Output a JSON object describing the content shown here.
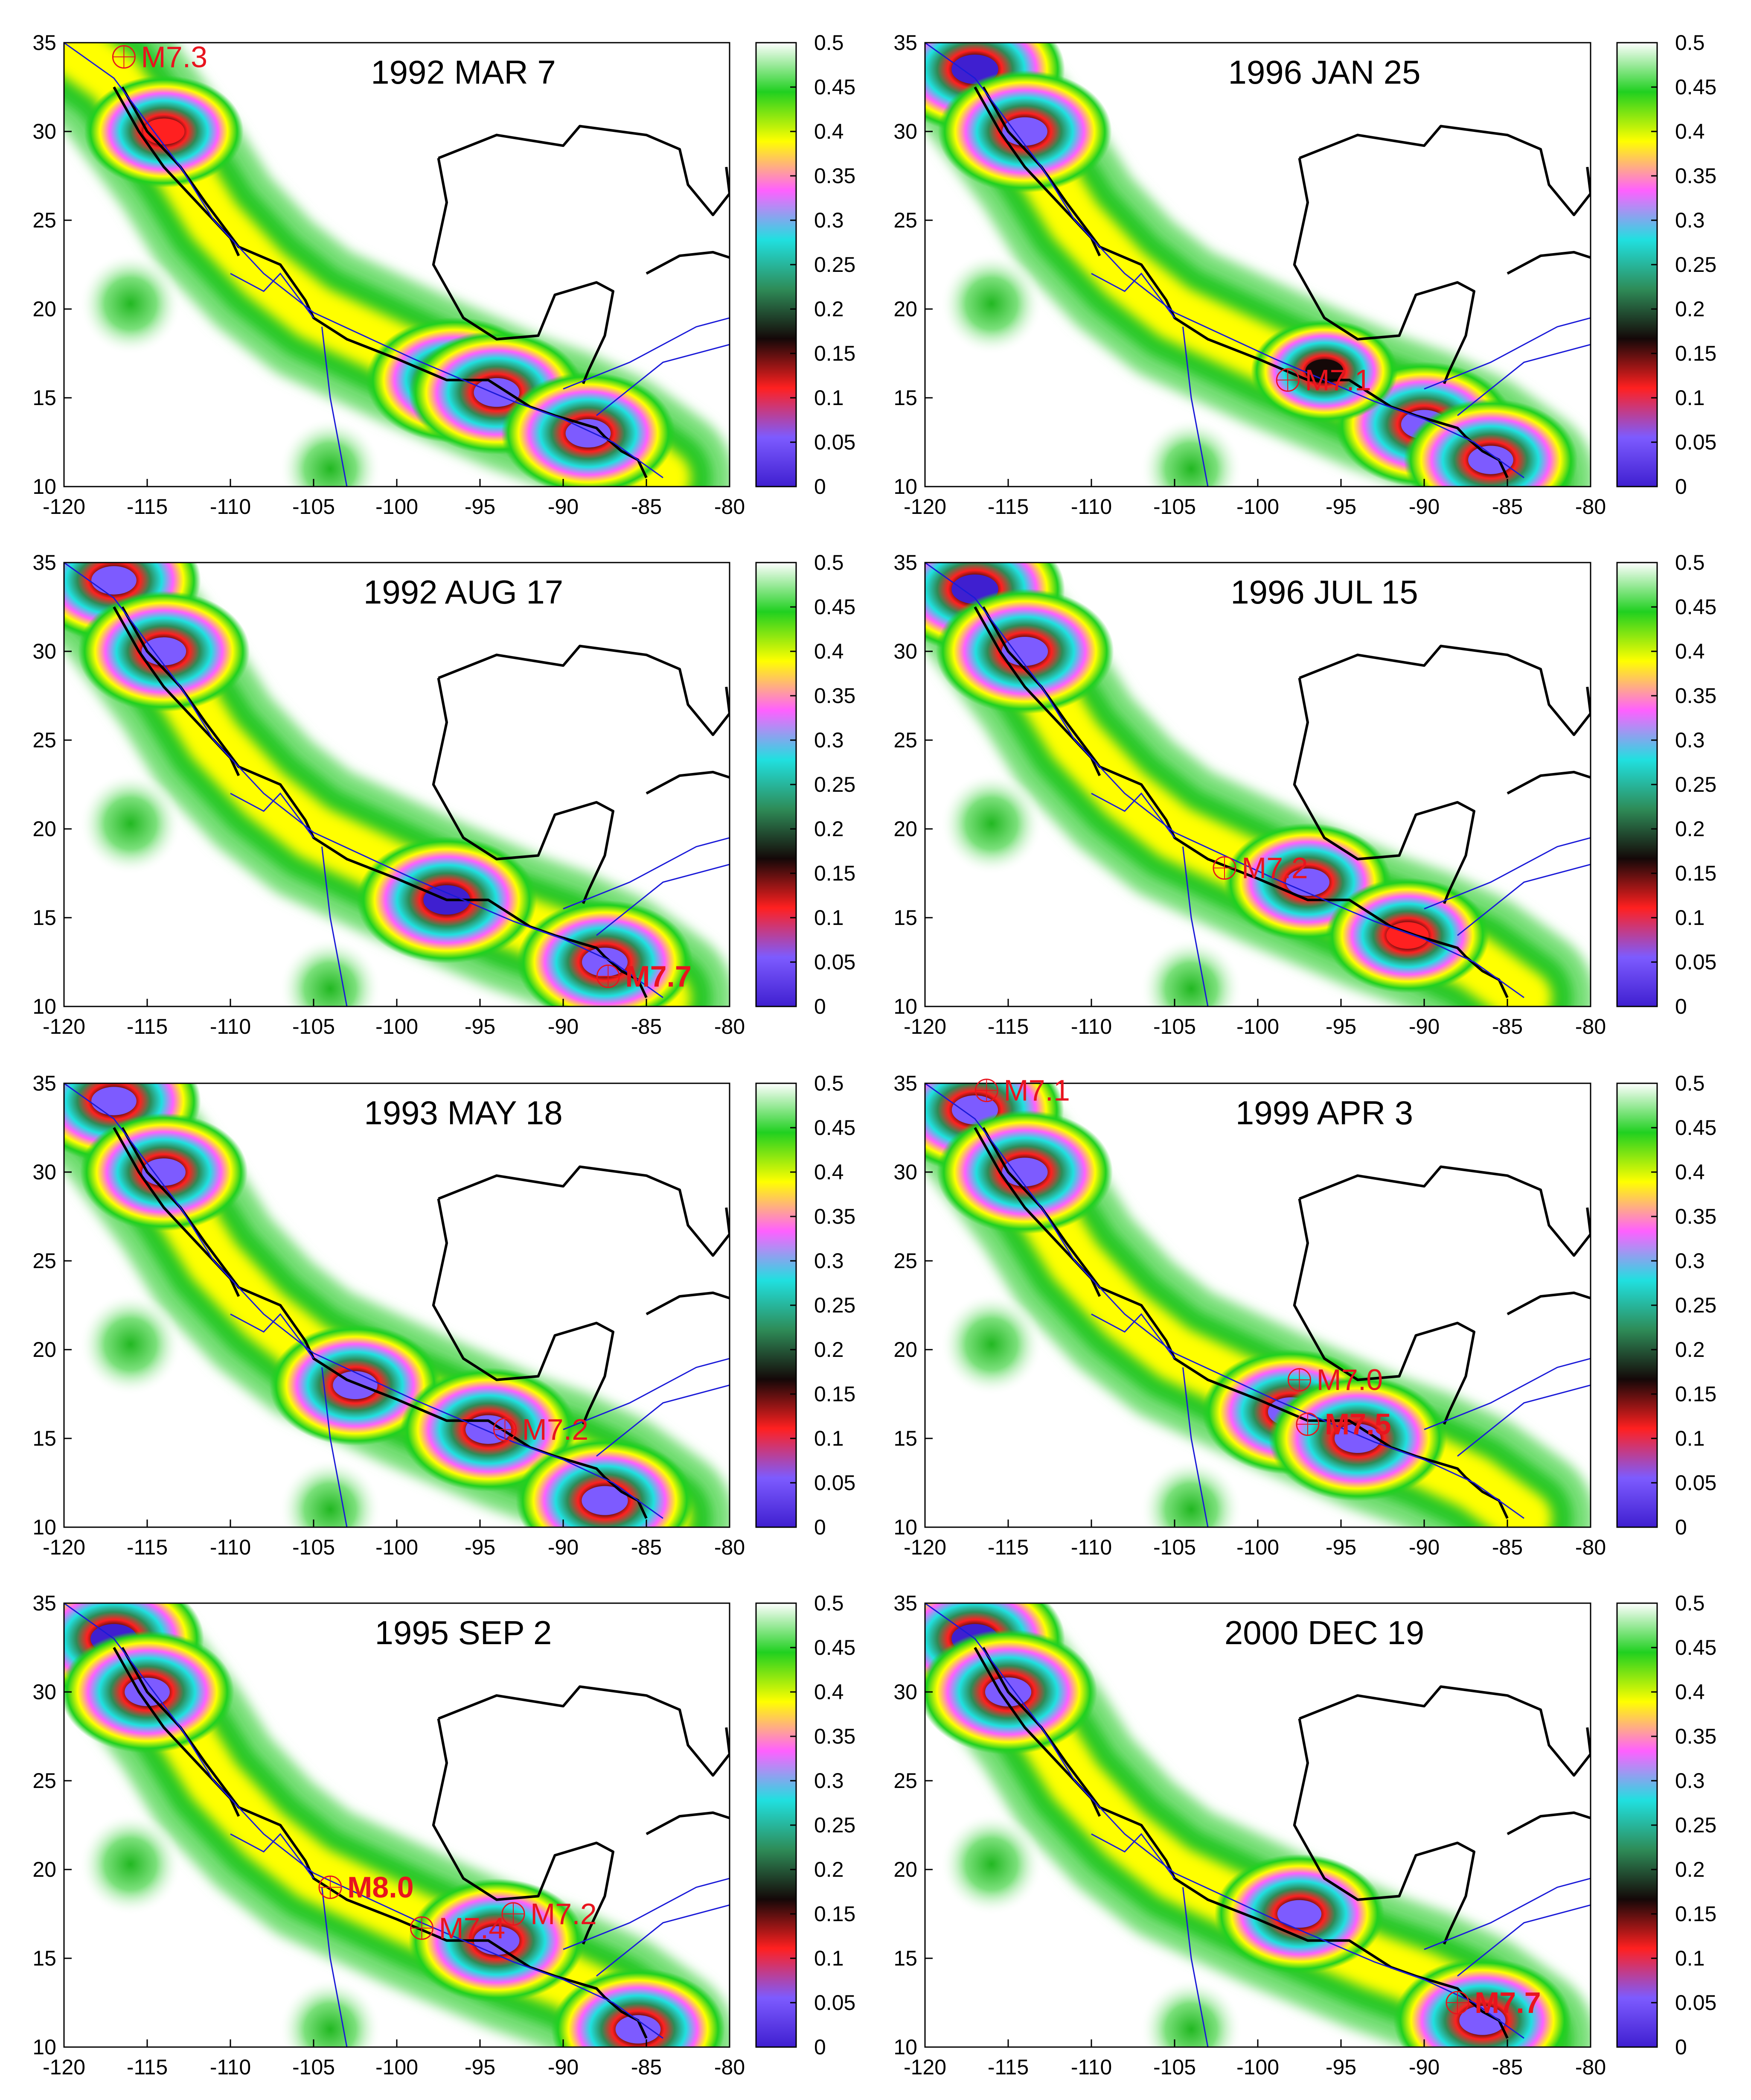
{
  "chart_data": [
    {
      "type": "heatmap",
      "title": "1992 MAR 7",
      "xlim": [
        -120,
        -80
      ],
      "ylim": [
        10,
        35
      ],
      "x_ticks": [
        "-120",
        "-115",
        "-110",
        "-105",
        "-100",
        "-95",
        "-90",
        "-85",
        "-80"
      ],
      "y_ticks": [
        "10",
        "15",
        "20",
        "25",
        "30",
        "35"
      ],
      "colorbar": {
        "range": [
          0,
          0.5
        ],
        "ticks": [
          "0",
          "0.05",
          "0.1",
          "0.15",
          "0.2",
          "0.25",
          "0.3",
          "0.35",
          "0.4",
          "0.45",
          "0.5"
        ]
      },
      "earthquakes": [
        {
          "label": "M7.3",
          "lon": -116.4,
          "lat": 34.2,
          "bold": false
        }
      ],
      "hotspots": [
        {
          "lon": -96.5,
          "lat": 16.0,
          "value": 0.03
        },
        {
          "lon": -94.0,
          "lat": 15.3,
          "value": 0.04
        },
        {
          "lon": -88.5,
          "lat": 13.0,
          "value": 0.05
        },
        {
          "lon": -114.0,
          "lat": 30.0,
          "value": 0.12
        }
      ]
    },
    {
      "type": "heatmap",
      "title": "1996 JAN 25",
      "xlim": [
        -120,
        -80
      ],
      "ylim": [
        10,
        35
      ],
      "x_ticks": [
        "-120",
        "-115",
        "-110",
        "-105",
        "-100",
        "-95",
        "-90",
        "-85",
        "-80"
      ],
      "y_ticks": [
        "10",
        "15",
        "20",
        "25",
        "30",
        "35"
      ],
      "colorbar": {
        "range": [
          0,
          0.5
        ],
        "ticks": [
          "0",
          "0.05",
          "0.1",
          "0.15",
          "0.2",
          "0.25",
          "0.3",
          "0.35",
          "0.4",
          "0.45",
          "0.5"
        ]
      },
      "earthquakes": [
        {
          "label": "M7.1",
          "lon": -98.2,
          "lat": 16.0,
          "bold": false
        }
      ],
      "hotspots": [
        {
          "lon": -117.0,
          "lat": 33.5,
          "value": 0.02
        },
        {
          "lon": -114.0,
          "lat": 30.0,
          "value": 0.05
        },
        {
          "lon": -90.0,
          "lat": 13.5,
          "value": 0.03
        },
        {
          "lon": -86.0,
          "lat": 11.5,
          "value": 0.05
        },
        {
          "lon": -96.0,
          "lat": 16.5,
          "value": 0.18
        }
      ]
    },
    {
      "type": "heatmap",
      "title": "1992 AUG 17",
      "xlim": [
        -120,
        -80
      ],
      "ylim": [
        10,
        35
      ],
      "x_ticks": [
        "-120",
        "-115",
        "-110",
        "-105",
        "-100",
        "-95",
        "-90",
        "-85",
        "-80"
      ],
      "y_ticks": [
        "10",
        "15",
        "20",
        "25",
        "30",
        "35"
      ],
      "colorbar": {
        "range": [
          0,
          0.5
        ],
        "ticks": [
          "0",
          "0.05",
          "0.1",
          "0.15",
          "0.2",
          "0.25",
          "0.3",
          "0.35",
          "0.4",
          "0.45",
          "0.5"
        ]
      },
      "earthquakes": [
        {
          "label": "M7.7",
          "lon": -87.3,
          "lat": 11.7,
          "bold": true
        }
      ],
      "hotspots": [
        {
          "lon": -117.0,
          "lat": 34.0,
          "value": 0.05
        },
        {
          "lon": -114.0,
          "lat": 30.0,
          "value": 0.06
        },
        {
          "lon": -97.0,
          "lat": 16.0,
          "value": 0.02
        },
        {
          "lon": -87.5,
          "lat": 12.5,
          "value": 0.04
        }
      ]
    },
    {
      "type": "heatmap",
      "title": "1996 JUL 15",
      "xlim": [
        -120,
        -80
      ],
      "ylim": [
        10,
        35
      ],
      "x_ticks": [
        "-120",
        "-115",
        "-110",
        "-105",
        "-100",
        "-95",
        "-90",
        "-85",
        "-80"
      ],
      "y_ticks": [
        "10",
        "15",
        "20",
        "25",
        "30",
        "35"
      ],
      "colorbar": {
        "range": [
          0,
          0.5
        ],
        "ticks": [
          "0",
          "0.05",
          "0.1",
          "0.15",
          "0.2",
          "0.25",
          "0.3",
          "0.35",
          "0.4",
          "0.45",
          "0.5"
        ]
      },
      "earthquakes": [
        {
          "label": "M7.2",
          "lon": -102.0,
          "lat": 17.8,
          "bold": false
        }
      ],
      "hotspots": [
        {
          "lon": -117.0,
          "lat": 33.5,
          "value": 0.02
        },
        {
          "lon": -114.0,
          "lat": 30.0,
          "value": 0.03
        },
        {
          "lon": -97.0,
          "lat": 17.0,
          "value": 0.08
        },
        {
          "lon": -91.0,
          "lat": 14.0,
          "value": 0.1
        }
      ]
    },
    {
      "type": "heatmap",
      "title": "1993 MAY 18",
      "xlim": [
        -120,
        -80
      ],
      "ylim": [
        10,
        35
      ],
      "x_ticks": [
        "-120",
        "-115",
        "-110",
        "-105",
        "-100",
        "-95",
        "-90",
        "-85",
        "-80"
      ],
      "y_ticks": [
        "10",
        "15",
        "20",
        "25",
        "30",
        "35"
      ],
      "colorbar": {
        "range": [
          0,
          0.5
        ],
        "ticks": [
          "0",
          "0.05",
          "0.1",
          "0.15",
          "0.2",
          "0.25",
          "0.3",
          "0.35",
          "0.4",
          "0.45",
          "0.5"
        ]
      },
      "earthquakes": [
        {
          "label": "M7.2",
          "lon": -93.5,
          "lat": 15.5,
          "bold": false
        }
      ],
      "hotspots": [
        {
          "lon": -117.0,
          "lat": 34.0,
          "value": 0.05
        },
        {
          "lon": -114.0,
          "lat": 30.0,
          "value": 0.08
        },
        {
          "lon": -102.5,
          "lat": 18.0,
          "value": 0.06
        },
        {
          "lon": -94.5,
          "lat": 15.5,
          "value": 0.04
        },
        {
          "lon": -87.5,
          "lat": 11.5,
          "value": 0.03
        }
      ]
    },
    {
      "type": "heatmap",
      "title": "1999 APR 3",
      "xlim": [
        -120,
        -80
      ],
      "ylim": [
        10,
        35
      ],
      "x_ticks": [
        "-120",
        "-115",
        "-110",
        "-105",
        "-100",
        "-95",
        "-90",
        "-85",
        "-80"
      ],
      "y_ticks": [
        "10",
        "15",
        "20",
        "25",
        "30",
        "35"
      ],
      "colorbar": {
        "range": [
          0,
          0.5
        ],
        "ticks": [
          "0",
          "0.05",
          "0.1",
          "0.15",
          "0.2",
          "0.25",
          "0.3",
          "0.35",
          "0.4",
          "0.45",
          "0.5"
        ]
      },
      "earthquakes": [
        {
          "label": "M7.1",
          "lon": -116.3,
          "lat": 34.6,
          "bold": false
        },
        {
          "label": "M7.0",
          "lon": -97.5,
          "lat": 18.3,
          "bold": false
        },
        {
          "label": "M7.5",
          "lon": -97.0,
          "lat": 15.8,
          "bold": true
        }
      ],
      "hotspots": [
        {
          "lon": -117.0,
          "lat": 33.5,
          "value": 0.03
        },
        {
          "lon": -114.0,
          "lat": 30.0,
          "value": 0.04
        },
        {
          "lon": -98.0,
          "lat": 16.5,
          "value": 0.03
        },
        {
          "lon": -94.0,
          "lat": 15.0,
          "value": 0.03
        }
      ]
    },
    {
      "type": "heatmap",
      "title": "1995 SEP 2",
      "xlim": [
        -120,
        -80
      ],
      "ylim": [
        10,
        35
      ],
      "x_ticks": [
        "-120",
        "-115",
        "-110",
        "-105",
        "-100",
        "-95",
        "-90",
        "-85",
        "-80"
      ],
      "y_ticks": [
        "10",
        "15",
        "20",
        "25",
        "30",
        "35"
      ],
      "colorbar": {
        "range": [
          0,
          0.5
        ],
        "ticks": [
          "0",
          "0.05",
          "0.1",
          "0.15",
          "0.2",
          "0.25",
          "0.3",
          "0.35",
          "0.4",
          "0.45",
          "0.5"
        ]
      },
      "earthquakes": [
        {
          "label": "M8.0",
          "lon": -104.0,
          "lat": 19.0,
          "bold": true
        },
        {
          "label": "M7.2",
          "lon": -93.0,
          "lat": 17.5,
          "bold": false
        },
        {
          "label": "M7.4",
          "lon": -98.5,
          "lat": 16.7,
          "bold": false
        }
      ],
      "hotspots": [
        {
          "lon": -117.0,
          "lat": 33.0,
          "value": 0.02
        },
        {
          "lon": -115.0,
          "lat": 30.0,
          "value": 0.05
        },
        {
          "lon": -94.0,
          "lat": 16.0,
          "value": 0.04
        },
        {
          "lon": -85.5,
          "lat": 11.0,
          "value": 0.05
        }
      ]
    },
    {
      "type": "heatmap",
      "title": "2000 DEC 19",
      "xlim": [
        -120,
        -80
      ],
      "ylim": [
        10,
        35
      ],
      "x_ticks": [
        "-120",
        "-115",
        "-110",
        "-105",
        "-100",
        "-95",
        "-90",
        "-85",
        "-80"
      ],
      "y_ticks": [
        "10",
        "15",
        "20",
        "25",
        "30",
        "35"
      ],
      "colorbar": {
        "range": [
          0,
          0.5
        ],
        "ticks": [
          "0",
          "0.05",
          "0.1",
          "0.15",
          "0.2",
          "0.25",
          "0.3",
          "0.35",
          "0.4",
          "0.45",
          "0.5"
        ]
      },
      "earthquakes": [
        {
          "label": "M7.7",
          "lon": -88.0,
          "lat": 12.5,
          "bold": true
        }
      ],
      "hotspots": [
        {
          "lon": -117.0,
          "lat": 33.0,
          "value": 0.02
        },
        {
          "lon": -115.0,
          "lat": 30.0,
          "value": 0.03
        },
        {
          "lon": -97.5,
          "lat": 17.5,
          "value": 0.07
        },
        {
          "lon": -86.5,
          "lat": 11.5,
          "value": 0.03
        }
      ]
    }
  ],
  "colors": {
    "colormap": [
      "#3f1fd0",
      "#7d5bff",
      "#ff2020",
      "#140808",
      "#2e8b57",
      "#20e0e0",
      "#ff60ff",
      "#ffff00",
      "#20d020",
      "#ffffff"
    ],
    "coastline": "#000000",
    "borders": "#1a1ad8",
    "label": "#e8141e"
  }
}
